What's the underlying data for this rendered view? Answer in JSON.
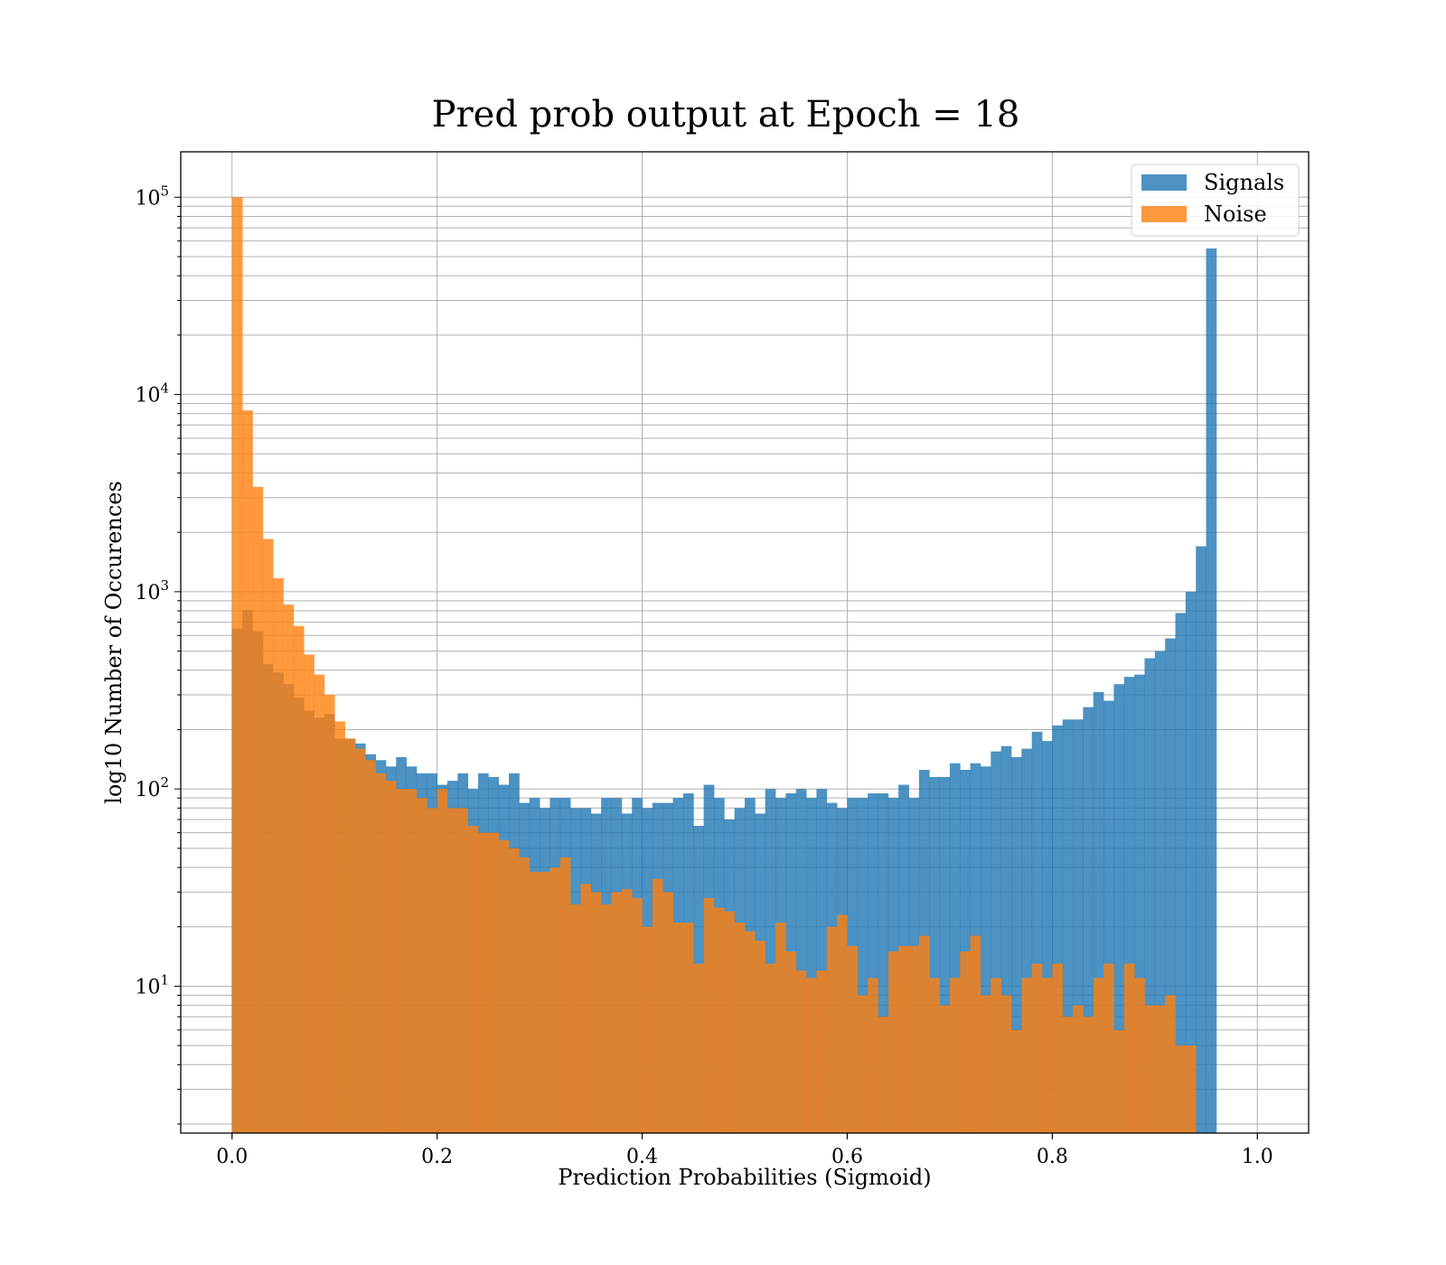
{
  "chart_data": {
    "type": "bar",
    "subtype": "histogram-overlay",
    "title": "Pred prob output at Epoch = 18",
    "xlabel": "Prediction Probabilities (Sigmoid)",
    "ylabel": "log10 Number of Occurences",
    "yscale": "log",
    "xlim": [
      -0.05,
      1.05
    ],
    "ylim": [
      1.8,
      170000
    ],
    "x_ticks": [
      0.0,
      0.2,
      0.4,
      0.6,
      0.8,
      1.0
    ],
    "x_tick_labels": [
      "0.0",
      "0.2",
      "0.4",
      "0.6",
      "0.8",
      "1.0"
    ],
    "y_ticks": [
      {
        "value": 10,
        "base": "10",
        "exp": "1"
      },
      {
        "value": 100,
        "base": "10",
        "exp": "2"
      },
      {
        "value": 1000,
        "base": "10",
        "exp": "3"
      },
      {
        "value": 10000,
        "base": "10",
        "exp": "4"
      },
      {
        "value": 100000,
        "base": "10",
        "exp": "5"
      }
    ],
    "grid": true,
    "legend_position": "top-right",
    "bin_range": [
      0.0,
      1.0
    ],
    "bin_count": 100,
    "series": [
      {
        "name": "Signals",
        "color": "#1f77b4",
        "opacity": 0.8,
        "values": [
          650,
          810,
          630,
          430,
          390,
          340,
          290,
          250,
          230,
          240,
          180,
          180,
          170,
          150,
          140,
          130,
          145,
          130,
          120,
          120,
          105,
          110,
          120,
          100,
          120,
          115,
          105,
          120,
          85,
          90,
          80,
          90,
          90,
          80,
          80,
          75,
          90,
          90,
          75,
          90,
          80,
          85,
          85,
          90,
          95,
          65,
          105,
          90,
          70,
          80,
          90,
          75,
          100,
          90,
          95,
          100,
          90,
          100,
          85,
          80,
          90,
          90,
          95,
          95,
          90,
          105,
          90,
          125,
          115,
          115,
          135,
          125,
          135,
          130,
          155,
          165,
          145,
          160,
          195,
          175,
          210,
          225,
          225,
          260,
          310,
          280,
          340,
          370,
          380,
          460,
          500,
          580,
          780,
          1000,
          1700,
          55000,
          0,
          0,
          0,
          0
        ]
      },
      {
        "name": "Noise",
        "color": "#ff7f0e",
        "opacity": 0.8,
        "values": [
          100000,
          8300,
          3400,
          1850,
          1170,
          860,
          670,
          480,
          380,
          300,
          220,
          180,
          160,
          140,
          120,
          110,
          100,
          100,
          90,
          80,
          100,
          80,
          80,
          65,
          60,
          60,
          55,
          50,
          45,
          38,
          38,
          40,
          45,
          26,
          33,
          30,
          26,
          30,
          31,
          28,
          20,
          35,
          30,
          21,
          21,
          13,
          28,
          25,
          24,
          21,
          19,
          17,
          13,
          21,
          15,
          12,
          11,
          12,
          20,
          23,
          16,
          9,
          11,
          7,
          15,
          16,
          16,
          18,
          11,
          8,
          11,
          15,
          18,
          9,
          11,
          9,
          6,
          11,
          13,
          11,
          13,
          7,
          8,
          7,
          11,
          13,
          6,
          13,
          11,
          8,
          8,
          9,
          5,
          5,
          0,
          0,
          0,
          0,
          0,
          0
        ]
      }
    ]
  }
}
